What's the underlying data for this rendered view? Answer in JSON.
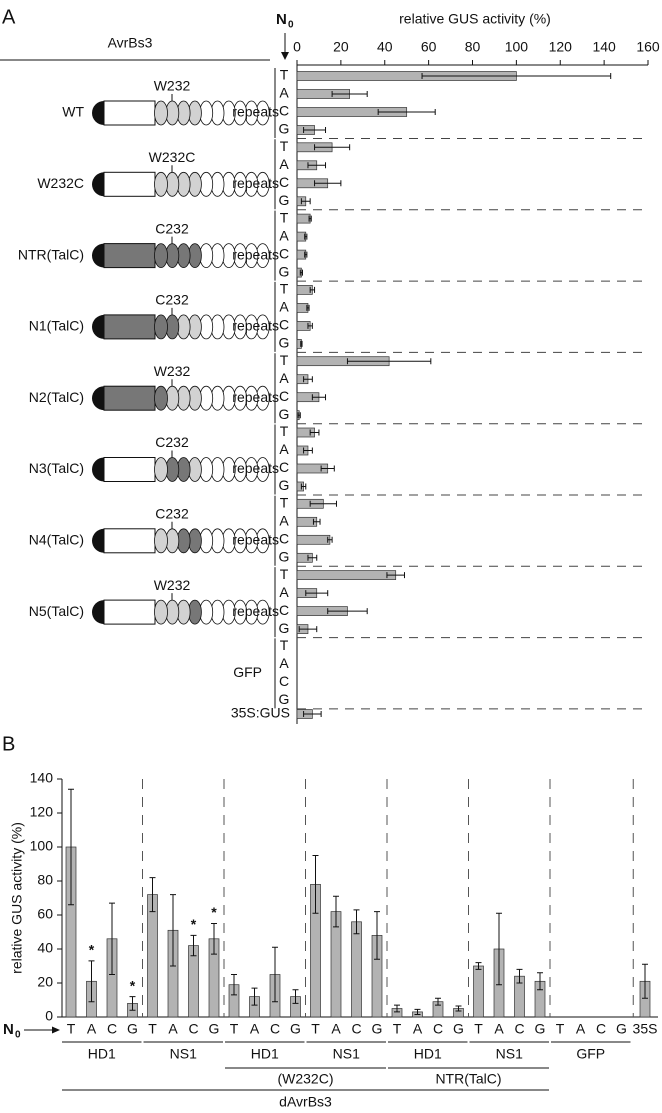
{
  "chart_data": [
    {
      "type": "hbar",
      "panel_label": "A",
      "title": "relative GUS activity (%)",
      "protein_heading": "AvrBs3",
      "position_marker": {
        "text": "N",
        "subscript": "0"
      },
      "letters": [
        "T",
        "A",
        "C",
        "G"
      ],
      "domain_label": "repeats",
      "xlim": [
        0,
        160
      ],
      "xticks": [
        0,
        20,
        40,
        60,
        80,
        100,
        120,
        140,
        160
      ],
      "color": "#b3b3b3",
      "groups": [
        {
          "name": "WT",
          "residue": "W232",
          "values": [
            100,
            24,
            50,
            8
          ],
          "errors": [
            43,
            8,
            13,
            5
          ]
        },
        {
          "name": "W232C",
          "residue": "W232C",
          "values": [
            16,
            9,
            14,
            4
          ],
          "errors": [
            8,
            4,
            6,
            2
          ]
        },
        {
          "name": "NTR(TalC)",
          "residue": "C232",
          "values": [
            6,
            4,
            4,
            2
          ],
          "errors": [
            0.5,
            0.5,
            0.5,
            0.5
          ]
        },
        {
          "name": "N1(TalC)",
          "residue": "C232",
          "values": [
            7,
            5,
            6,
            2
          ],
          "errors": [
            1,
            0.5,
            1,
            0.3
          ]
        },
        {
          "name": "N2(TalC)",
          "residue": "W232",
          "values": [
            42,
            5,
            10,
            1
          ],
          "errors": [
            19,
            2,
            3,
            0.5
          ]
        },
        {
          "name": "N3(TalC)",
          "residue": "C232",
          "values": [
            8,
            5,
            14,
            3
          ],
          "errors": [
            2,
            2,
            3,
            1
          ]
        },
        {
          "name": "N4(TalC)",
          "residue": "C232",
          "values": [
            12,
            9,
            15,
            7
          ],
          "errors": [
            6,
            1.5,
            1,
            2
          ]
        },
        {
          "name": "N5(TalC)",
          "residue": "W232",
          "values": [
            45,
            9,
            23,
            5
          ],
          "errors": [
            4,
            5,
            9,
            4
          ]
        },
        {
          "name": "GFP",
          "values": [
            0,
            0,
            0,
            0
          ]
        },
        {
          "name": "35S:GUS",
          "values": [
            7
          ],
          "errors": [
            4
          ]
        }
      ]
    },
    {
      "type": "bar",
      "panel_label": "B",
      "ylabel": "relative GUS activity (%)",
      "position_marker": {
        "text": "N",
        "subscript": "0"
      },
      "ylim": [
        0,
        140
      ],
      "yticks": [
        0,
        20,
        40,
        60,
        80,
        100,
        120,
        140
      ],
      "color": "#b3b3b3",
      "constructs": [
        {
          "name": "dAvrBs3",
          "variants": [
            {
              "name": null,
              "groups": [
                {
                  "name": "HD1",
                  "categories": [
                    "T",
                    "A",
                    "C",
                    "G"
                  ],
                  "values": [
                    100,
                    21,
                    46,
                    8
                  ],
                  "errors": [
                    34,
                    12,
                    21,
                    4
                  ],
                  "annotations": [
                    null,
                    "*",
                    null,
                    "*"
                  ]
                },
                {
                  "name": "NS1",
                  "categories": [
                    "T",
                    "A",
                    "C",
                    "G"
                  ],
                  "values": [
                    72,
                    51,
                    42,
                    46
                  ],
                  "errors": [
                    10,
                    21,
                    6,
                    9
                  ],
                  "annotations": [
                    null,
                    null,
                    "*",
                    "*"
                  ]
                }
              ]
            },
            {
              "name": "(W232C)",
              "groups": [
                {
                  "name": "HD1",
                  "categories": [
                    "T",
                    "A",
                    "C",
                    "G"
                  ],
                  "values": [
                    19,
                    12,
                    25,
                    12
                  ],
                  "errors": [
                    6,
                    5,
                    16,
                    4
                  ]
                },
                {
                  "name": "NS1",
                  "categories": [
                    "T",
                    "A",
                    "C",
                    "G"
                  ],
                  "values": [
                    78,
                    62,
                    56,
                    48
                  ],
                  "errors": [
                    17,
                    9,
                    7,
                    14
                  ]
                }
              ]
            },
            {
              "name": "NTR(TalC)",
              "groups": [
                {
                  "name": "HD1",
                  "categories": [
                    "T",
                    "A",
                    "C",
                    "G"
                  ],
                  "values": [
                    5,
                    3,
                    9,
                    5
                  ],
                  "errors": [
                    2,
                    1.5,
                    2,
                    1.5
                  ]
                },
                {
                  "name": "NS1",
                  "categories": [
                    "T",
                    "A",
                    "C",
                    "G"
                  ],
                  "values": [
                    30,
                    40,
                    24,
                    21
                  ],
                  "errors": [
                    2,
                    21,
                    4,
                    5
                  ]
                }
              ]
            }
          ]
        },
        {
          "name": null,
          "variants": [
            {
              "name": null,
              "groups": [
                {
                  "name": "GFP",
                  "categories": [
                    "T",
                    "A",
                    "C",
                    "G"
                  ],
                  "values": [
                    0,
                    0,
                    0,
                    0
                  ]
                }
              ]
            }
          ]
        },
        {
          "name": null,
          "variants": [
            {
              "name": null,
              "groups": [
                {
                  "name": null,
                  "categories": [
                    "35S"
                  ],
                  "values": [
                    21
                  ],
                  "errors": [
                    10
                  ]
                }
              ]
            }
          ]
        }
      ]
    }
  ]
}
